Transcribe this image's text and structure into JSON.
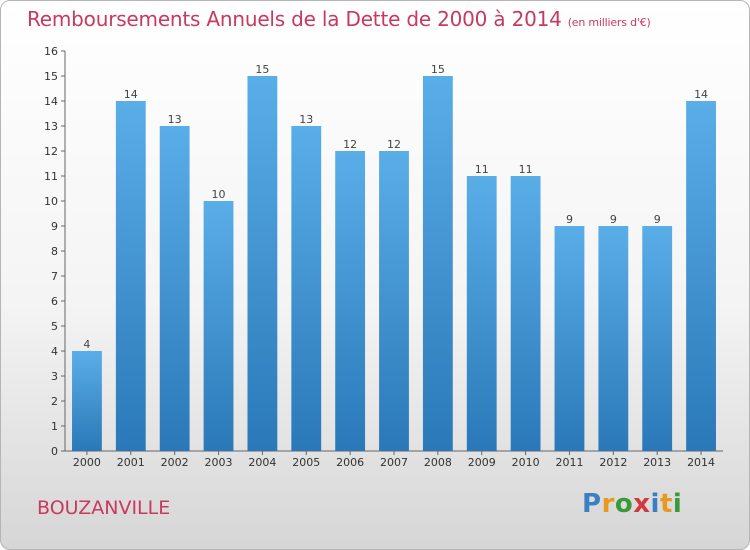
{
  "header": {
    "title": "Remboursements Annuels de la Dette de 2000 à 2014",
    "unit": "(en milliers d'€)"
  },
  "commune": "BOUZANVILLE",
  "logo": {
    "letters": [
      "P",
      "r",
      "o",
      "x",
      "i",
      "t",
      "i"
    ],
    "colors": [
      "#3a7fc4",
      "#e89a1e",
      "#3a9a3a",
      "#d03a3a",
      "#3a7fc4",
      "#e89a1e",
      "#3a9a3a"
    ]
  },
  "colors": {
    "bar_top": "#5aaee8",
    "bar_bottom": "#2a78b8",
    "title": "#c8395f"
  },
  "chart_data": {
    "type": "bar",
    "title": "Remboursements Annuels de la Dette de 2000 à 2014",
    "xlabel": "",
    "ylabel": "",
    "categories": [
      "2000",
      "2001",
      "2002",
      "2003",
      "2004",
      "2005",
      "2006",
      "2007",
      "2008",
      "2009",
      "2010",
      "2011",
      "2012",
      "2013",
      "2014"
    ],
    "values": [
      4,
      14,
      13,
      10,
      15,
      13,
      12,
      12,
      15,
      11,
      11,
      9,
      9,
      9,
      14
    ],
    "ylim": [
      0,
      16
    ],
    "yticks": [
      0,
      1,
      2,
      3,
      4,
      5,
      6,
      7,
      8,
      9,
      10,
      11,
      12,
      13,
      14,
      15,
      16
    ],
    "grid": false
  }
}
